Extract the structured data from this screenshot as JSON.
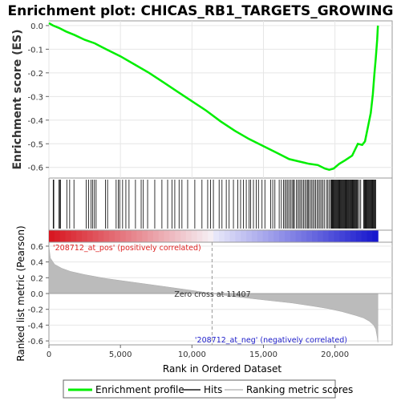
{
  "chart_data": {
    "type": "line",
    "title": "Enrichment plot: CHICAS_RB1_TARGETS_GROWING",
    "top_panel": {
      "ylabel": "Enrichment score (ES)",
      "ylim": [
        -0.645,
        0.02
      ],
      "yticks": [
        0.0,
        -0.1,
        -0.2,
        -0.3,
        -0.4,
        -0.5,
        -0.6
      ],
      "ytick_labels": [
        "0.0",
        "-0.1",
        "-0.2",
        "-0.3",
        "-0.4",
        "-0.5",
        "-0.6"
      ],
      "series": [
        {
          "name": "Enrichment profile",
          "color": "#00ee00",
          "x": [
            0,
            300,
            700,
            1200,
            1800,
            2500,
            3200,
            4000,
            5000,
            6000,
            7000,
            8000,
            9000,
            10000,
            11000,
            12000,
            13000,
            14000,
            15000,
            16000,
            16800,
            17500,
            18200,
            18800,
            19300,
            19600,
            19900,
            20300,
            20700,
            21200,
            21600,
            21900,
            22100,
            22300,
            22500,
            22650,
            22750,
            22850,
            22950,
            23000
          ],
          "values": [
            0.01,
            0.0,
            -0.01,
            -0.025,
            -0.04,
            -0.06,
            -0.075,
            -0.1,
            -0.13,
            -0.165,
            -0.2,
            -0.24,
            -0.28,
            -0.32,
            -0.36,
            -0.405,
            -0.445,
            -0.48,
            -0.51,
            -0.54,
            -0.565,
            -0.575,
            -0.585,
            -0.59,
            -0.605,
            -0.61,
            -0.605,
            -0.585,
            -0.57,
            -0.55,
            -0.5,
            -0.505,
            -0.49,
            -0.43,
            -0.37,
            -0.29,
            -0.21,
            -0.14,
            -0.06,
            0.0
          ]
        }
      ]
    },
    "ranked_metric_panel": {
      "ylabel": "Ranked list metric (Pearson)",
      "ylim": [
        -0.65,
        0.65
      ],
      "yticks": [
        0.6,
        0.4,
        0.2,
        0.0,
        -0.2,
        -0.4,
        -0.6
      ],
      "ytick_labels": [
        "0.6",
        "0.4",
        "0.2",
        "0.0",
        "-0.2",
        "-0.4",
        "-0.6"
      ],
      "x": [
        0,
        100,
        400,
        900,
        1500,
        2500,
        4000,
        6000,
        8000,
        10000,
        11407,
        13000,
        15000,
        17000,
        18500,
        19500,
        20500,
        21500,
        22000,
        22400,
        22700,
        22850,
        22950,
        23000
      ],
      "values": [
        0.6,
        0.45,
        0.37,
        0.32,
        0.28,
        0.24,
        0.19,
        0.14,
        0.09,
        0.04,
        0.0,
        -0.04,
        -0.08,
        -0.12,
        -0.16,
        -0.19,
        -0.23,
        -0.28,
        -0.31,
        -0.35,
        -0.4,
        -0.45,
        -0.55,
        -0.62
      ],
      "zero_cross": 11407,
      "zero_cross_label": "Zero cross at 11407",
      "pos_label": "'208712_at_pos' (positively correlated)",
      "neg_label": "'208712_at_neg' (negatively correlated)",
      "pos_color": "#dd2222",
      "neg_color": "#2222cc"
    },
    "hits": [
      300,
      340,
      700,
      770,
      810,
      1250,
      1450,
      1750,
      2600,
      2780,
      2950,
      3050,
      3180,
      3300,
      3950,
      4100,
      4700,
      4850,
      4950,
      5150,
      5380,
      5600,
      6050,
      6450,
      6600,
      6900,
      7400,
      7900,
      8300,
      8600,
      8800,
      9100,
      9300,
      9700,
      10200,
      10700,
      11100,
      11300,
      11500,
      11900,
      12100,
      12400,
      12600,
      12900,
      13200,
      13400,
      13600,
      13800,
      14000,
      14100,
      14300,
      14500,
      14650,
      14900,
      15100,
      15500,
      15650,
      15800,
      16100,
      16250,
      16400,
      16500,
      16600,
      16700,
      16800,
      16900,
      17000,
      17100,
      17150,
      17300,
      17400,
      17500,
      17600,
      17700,
      17800,
      17900,
      18000,
      18100,
      18150,
      18250,
      18350,
      18450,
      18550,
      18650,
      18750,
      18850,
      18950,
      19050,
      19150,
      19250,
      19400,
      19500,
      19600,
      19700,
      19750,
      19800,
      19850,
      19900,
      19950,
      20000,
      20050,
      20100,
      20150,
      20200,
      20250,
      20300,
      20350,
      20400,
      20450,
      20500,
      20550,
      20600,
      20650,
      20700,
      20750,
      20800,
      20850,
      20900,
      20950,
      21000,
      21050,
      21100,
      21150,
      21200,
      21250,
      21300,
      21350,
      21400,
      21450,
      21500,
      21550,
      21600,
      21700,
      21800,
      22000,
      22050,
      22100,
      22150,
      22200,
      22250,
      22300,
      22350,
      22400,
      22450,
      22500,
      22550,
      22600,
      22650,
      22700,
      22750,
      22800,
      22850
    ],
    "x_axis": {
      "label": "Rank in Ordered Dataset",
      "xlim": [
        0,
        24000
      ],
      "ticks": [
        0,
        5000,
        10000,
        15000,
        20000
      ],
      "tick_labels": [
        "0",
        "5,000",
        "10,000",
        "15,000",
        "20,000"
      ]
    },
    "legend": {
      "position": "bottom",
      "items": [
        {
          "label": "Enrichment profile",
          "color": "#00ee00"
        },
        {
          "label": "Hits",
          "color": "#555555"
        },
        {
          "label": "Ranking metric scores",
          "color": "#cccccc"
        }
      ]
    }
  }
}
